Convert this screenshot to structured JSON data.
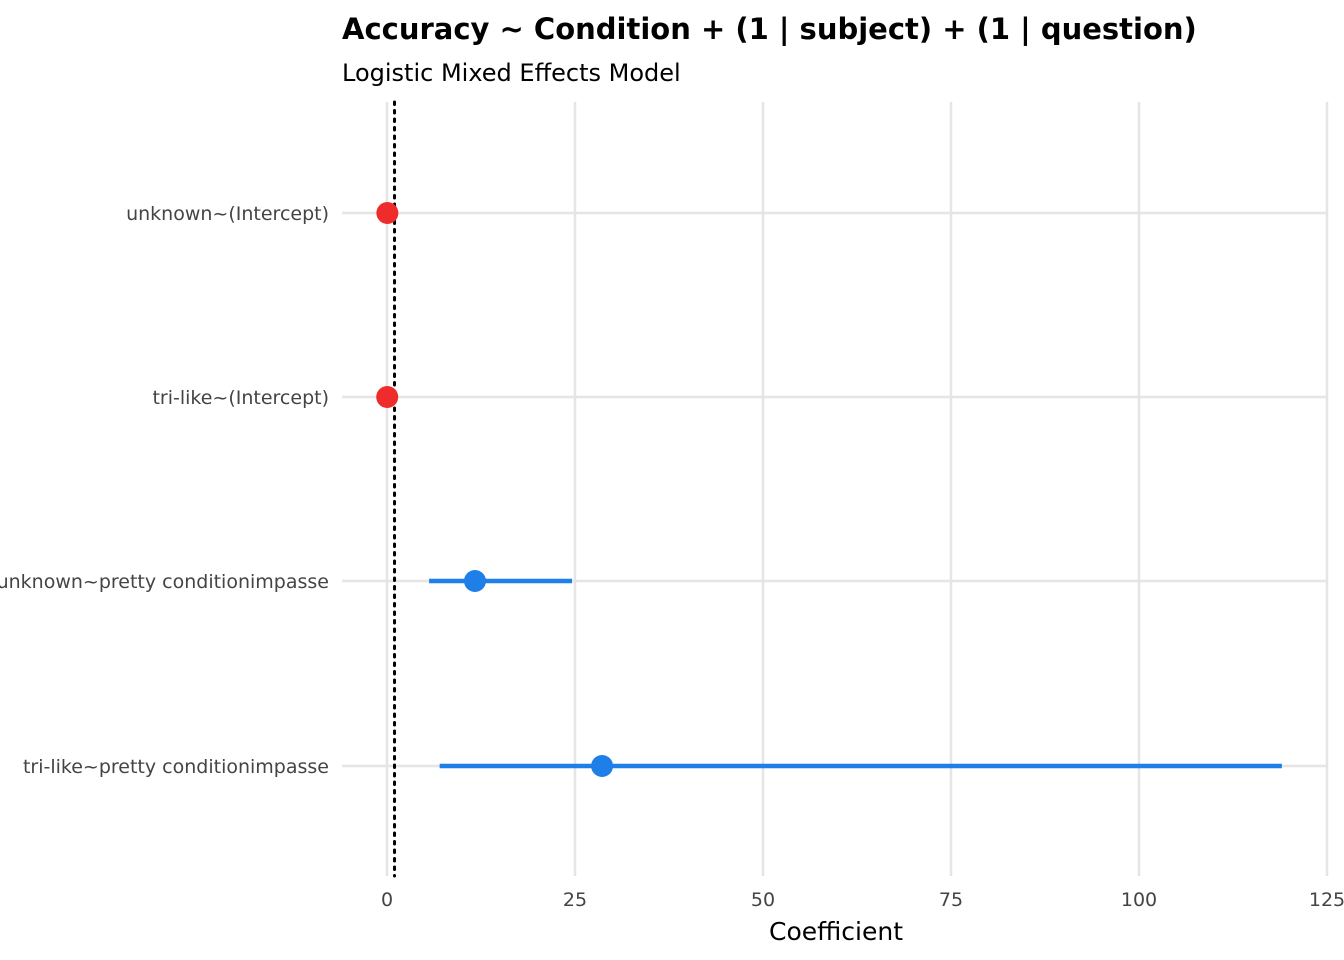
{
  "chart_data": {
    "type": "scatter",
    "title": "Accuracy ~ Condition + (1 | subject) + (1 | question)",
    "subtitle": "Logistic Mixed Effects Model",
    "xlabel": "Coefficient",
    "ylabel": "",
    "xlim": [
      0,
      125
    ],
    "x_ticks": [
      0,
      25,
      50,
      75,
      100,
      125
    ],
    "x_tick_labels": [
      "0",
      "25",
      "50",
      "75",
      "100",
      "125"
    ],
    "reference_line": {
      "x": 1,
      "style": "dotted",
      "color": "#000000"
    },
    "grid": true,
    "legend": "none",
    "terms": [
      {
        "label": "unknown~(Intercept)",
        "estimate": 0.05,
        "ci_low": null,
        "ci_high": null,
        "color": "#ee2c2c"
      },
      {
        "label": "tri-like~(Intercept)",
        "estimate": 0.03,
        "ci_low": null,
        "ci_high": null,
        "color": "#ee2c2c"
      },
      {
        "label": "unknown~pretty conditionimpasse",
        "estimate": 11.7,
        "ci_low": 5.6,
        "ci_high": 24.6,
        "color": "#1e7fe8"
      },
      {
        "label": "tri-like~pretty conditionimpasse",
        "estimate": 28.6,
        "ci_low": 7.0,
        "ci_high": 119.0,
        "color": "#1e7fe8"
      }
    ]
  }
}
